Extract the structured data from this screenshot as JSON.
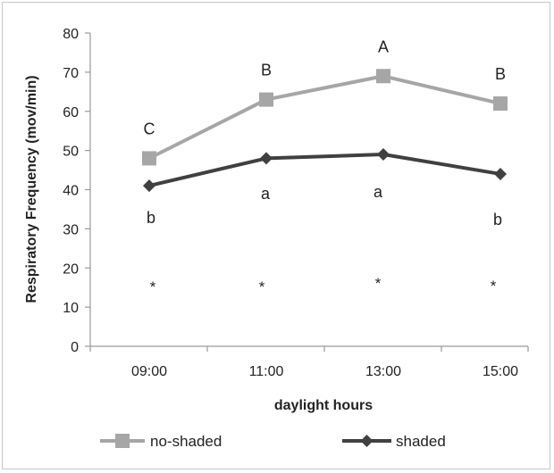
{
  "chart_data": {
    "type": "line",
    "categories": [
      "09:00",
      "11:00",
      "13:00",
      "15:00"
    ],
    "xlabel": "daylight hours",
    "ylabel": "Respiratory Frequency (mov/min)",
    "ylim": [
      0,
      80
    ],
    "yticks": [
      0,
      10,
      20,
      30,
      40,
      50,
      60,
      70,
      80
    ],
    "grid": false,
    "legend": "bottom",
    "series": [
      {
        "name": "no-shaded",
        "values": [
          48,
          63,
          69,
          62
        ],
        "color": "#a6a6a6",
        "marker": "square",
        "letters": [
          "C",
          "B",
          "A",
          "B"
        ]
      },
      {
        "name": "shaded",
        "values": [
          41,
          48,
          49,
          44
        ],
        "color": "#404040",
        "marker": "diamond",
        "letters": [
          "b",
          "a",
          "a",
          "b"
        ]
      }
    ],
    "significance_marks": [
      "*",
      "*",
      "*",
      "*"
    ]
  }
}
